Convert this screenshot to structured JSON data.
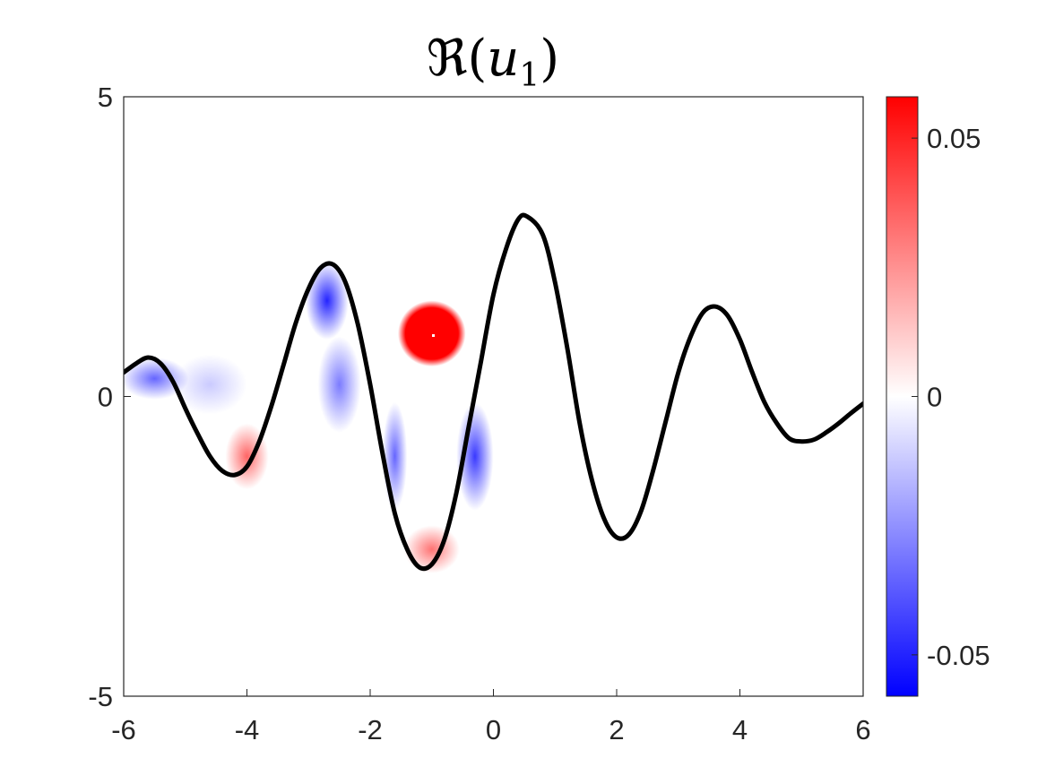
{
  "chart_data": {
    "type": "heatmap",
    "title": {
      "symbol": "ℜ",
      "open": "(",
      "var": "u",
      "sub": "1",
      "close": ")"
    },
    "xlim": [
      -6,
      6
    ],
    "ylim": [
      -5,
      5
    ],
    "xticks": [
      "-6",
      "-4",
      "-2",
      "0",
      "2",
      "4",
      "6"
    ],
    "yticks": [
      "-5",
      "0",
      "5"
    ],
    "colorbar": {
      "range": [
        -0.058,
        0.058
      ],
      "colormap": [
        "#0000ff",
        "#ffffff",
        "#ff0000"
      ],
      "ticks": [
        "0.05",
        "0",
        "-0.05"
      ],
      "tick_values": [
        0.05,
        0,
        -0.05
      ]
    },
    "curve": {
      "color": "#000000",
      "points": [
        [
          -6.0,
          0.4
        ],
        [
          -5.8,
          0.55
        ],
        [
          -5.6,
          0.65
        ],
        [
          -5.4,
          0.55
        ],
        [
          -5.2,
          0.25
        ],
        [
          -5.0,
          -0.2
        ],
        [
          -4.8,
          -0.62
        ],
        [
          -4.6,
          -1.0
        ],
        [
          -4.4,
          -1.24
        ],
        [
          -4.2,
          -1.31
        ],
        [
          -4.0,
          -1.17
        ],
        [
          -3.8,
          -0.75
        ],
        [
          -3.6,
          -0.15
        ],
        [
          -3.4,
          0.55
        ],
        [
          -3.2,
          1.25
        ],
        [
          -3.0,
          1.8
        ],
        [
          -2.8,
          2.15
        ],
        [
          -2.6,
          2.2
        ],
        [
          -2.4,
          1.9
        ],
        [
          -2.2,
          1.2
        ],
        [
          -2.0,
          0.2
        ],
        [
          -1.8,
          -0.95
        ],
        [
          -1.6,
          -1.95
        ],
        [
          -1.4,
          -2.55
        ],
        [
          -1.2,
          -2.85
        ],
        [
          -1.0,
          -2.8
        ],
        [
          -0.8,
          -2.4
        ],
        [
          -0.6,
          -1.6
        ],
        [
          -0.4,
          -0.5
        ],
        [
          -0.2,
          0.6
        ],
        [
          0.0,
          1.7
        ],
        [
          0.2,
          2.45
        ],
        [
          0.4,
          2.95
        ],
        [
          0.55,
          3.0
        ],
        [
          0.8,
          2.7
        ],
        [
          1.0,
          1.9
        ],
        [
          1.2,
          0.8
        ],
        [
          1.4,
          -0.45
        ],
        [
          1.6,
          -1.4
        ],
        [
          1.8,
          -2.05
        ],
        [
          2.0,
          -2.35
        ],
        [
          2.2,
          -2.3
        ],
        [
          2.4,
          -1.9
        ],
        [
          2.6,
          -1.2
        ],
        [
          2.8,
          -0.4
        ],
        [
          3.0,
          0.4
        ],
        [
          3.2,
          1.0
        ],
        [
          3.4,
          1.4
        ],
        [
          3.6,
          1.5
        ],
        [
          3.8,
          1.35
        ],
        [
          4.0,
          0.95
        ],
        [
          4.2,
          0.4
        ],
        [
          4.4,
          -0.1
        ],
        [
          4.6,
          -0.45
        ],
        [
          4.8,
          -0.7
        ],
        [
          5.0,
          -0.75
        ],
        [
          5.2,
          -0.72
        ],
        [
          5.4,
          -0.6
        ],
        [
          5.6,
          -0.45
        ],
        [
          5.8,
          -0.28
        ],
        [
          6.0,
          -0.12
        ]
      ]
    },
    "field": {
      "blobs": [
        {
          "x": -1.0,
          "y": 1.05,
          "amp": 0.08,
          "rx": 0.55,
          "ry": 0.55,
          "sharp": 6
        },
        {
          "x": -4.0,
          "y": -1.0,
          "amp": 0.035,
          "rx": 0.35,
          "ry": 0.55,
          "sharp": 2
        },
        {
          "x": -1.0,
          "y": -2.55,
          "amp": 0.032,
          "rx": 0.45,
          "ry": 0.4,
          "sharp": 2
        },
        {
          "x": -5.5,
          "y": 0.3,
          "amp": -0.035,
          "rx": 0.55,
          "ry": 0.35,
          "sharp": 2
        },
        {
          "x": -2.7,
          "y": 1.6,
          "amp": -0.05,
          "rx": 0.35,
          "ry": 0.65,
          "sharp": 2
        },
        {
          "x": -2.5,
          "y": 0.2,
          "amp": -0.03,
          "rx": 0.35,
          "ry": 0.8,
          "sharp": 2
        },
        {
          "x": -1.6,
          "y": -1.0,
          "amp": -0.035,
          "rx": 0.2,
          "ry": 0.9,
          "sharp": 2
        },
        {
          "x": -0.3,
          "y": -1.0,
          "amp": -0.045,
          "rx": 0.3,
          "ry": 0.9,
          "sharp": 2
        },
        {
          "x": -4.6,
          "y": 0.2,
          "amp": -0.012,
          "rx": 0.6,
          "ry": 0.5,
          "sharp": 2
        }
      ]
    }
  }
}
